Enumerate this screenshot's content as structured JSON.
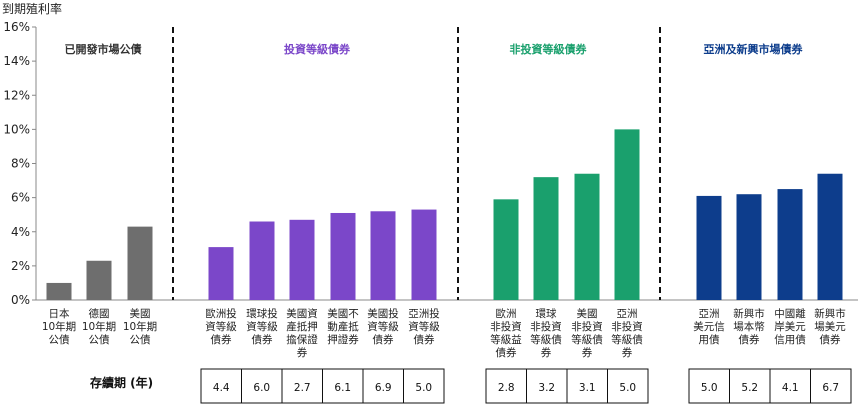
{
  "chart_data": {
    "type": "bar",
    "ylabel": "到期殖利率",
    "ylim": [
      0,
      16
    ],
    "yticks": [
      "0%",
      "2%",
      "4%",
      "6%",
      "8%",
      "10%",
      "12%",
      "14%",
      "16%"
    ],
    "grid": false,
    "groups": [
      {
        "name": "已開發市場公債",
        "color": "#6e6e6e",
        "label_color": "#333333",
        "categories": [
          [
            "日本",
            "10年期",
            "公債"
          ],
          [
            "德國",
            "10年期",
            "公債"
          ],
          [
            "美國",
            "10年期",
            "公債"
          ]
        ],
        "values": [
          1.0,
          2.3,
          4.3
        ],
        "duration": []
      },
      {
        "name": "投資等級債券",
        "color": "#7b47c9",
        "label_color": "#7b47c9",
        "categories": [
          [
            "歐洲投",
            "資等級",
            "債券"
          ],
          [
            "環球投",
            "資等級",
            "債券"
          ],
          [
            "美國資",
            "產抵押",
            "擔保證",
            "券"
          ],
          [
            "美國不",
            "動產抵",
            "押證券"
          ],
          [
            "美國投",
            "資等級",
            "債券"
          ],
          [
            "亞洲投",
            "資等級",
            "債券"
          ]
        ],
        "values": [
          3.1,
          4.6,
          4.7,
          5.1,
          5.2,
          5.3
        ],
        "duration": [
          "4.4",
          "6.0",
          "2.7",
          "6.1",
          "6.9",
          "5.0"
        ]
      },
      {
        "name": "非投資等級債券",
        "color": "#1aa06d",
        "label_color": "#1aa06d",
        "categories": [
          [
            "歐洲",
            "非投資",
            "等級益",
            "債券"
          ],
          [
            "環球",
            "非投資",
            "等級債",
            "券"
          ],
          [
            "美國",
            "非投資",
            "等級債",
            "券"
          ],
          [
            "亞洲",
            "非投資",
            "等級債",
            "券"
          ]
        ],
        "values": [
          5.9,
          7.2,
          7.4,
          10.0
        ],
        "duration": [
          "2.8",
          "3.2",
          "3.1",
          "5.0"
        ]
      },
      {
        "name": "亞洲及新興市場債券",
        "color": "#0d3d8c",
        "label_color": "#0d3d8c",
        "categories": [
          [
            "亞洲",
            "美元信",
            "用債"
          ],
          [
            "新興市",
            "場本幣",
            "債券"
          ],
          [
            "中國離",
            "岸美元",
            "信用債"
          ],
          [
            "新興市",
            "場美元",
            "債券"
          ]
        ],
        "values": [
          6.1,
          6.2,
          6.5,
          7.4
        ],
        "duration": [
          "5.0",
          "5.2",
          "4.1",
          "6.7"
        ]
      }
    ],
    "duration_title": "存續期 (年)"
  }
}
